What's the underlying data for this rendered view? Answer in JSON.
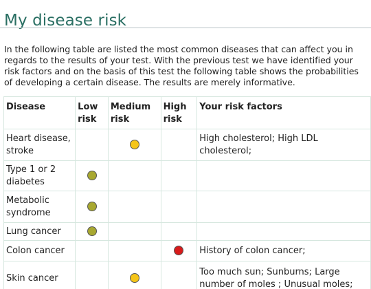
{
  "page": {
    "title": "My disease risk",
    "intro": "In the following table are listed the most common diseases that can affect you in regards to the results of your test. With the previous test we have identified your risk factors and on the basis of this test the following table shows the probabilities of developing a certain disease. The results are merely informative."
  },
  "table": {
    "headers": {
      "disease": "Disease",
      "low": "Low risk",
      "medium": "Medium risk",
      "high": "High risk",
      "factors": "Your risk factors"
    },
    "rows": [
      {
        "disease": "Heart disease, stroke",
        "risk": "medium",
        "factors": "High cholesterol; High LDL cholesterol;"
      },
      {
        "disease": "Type 1 or 2 diabetes",
        "risk": "low",
        "factors": ""
      },
      {
        "disease": "Metabolic syndrome",
        "risk": "low",
        "factors": ""
      },
      {
        "disease": "Lung cancer",
        "risk": "low",
        "factors": ""
      },
      {
        "disease": "Colon cancer",
        "risk": "high",
        "factors": "History of colon cancer;"
      },
      {
        "disease": "Skin cancer",
        "risk": "medium",
        "factors": "Too much sun; Sunburns; Large number of moles ; Unusual moles;"
      }
    ],
    "colors": {
      "low": "#a8a830",
      "medium": "#f5c518",
      "high": "#d81b1b"
    }
  }
}
